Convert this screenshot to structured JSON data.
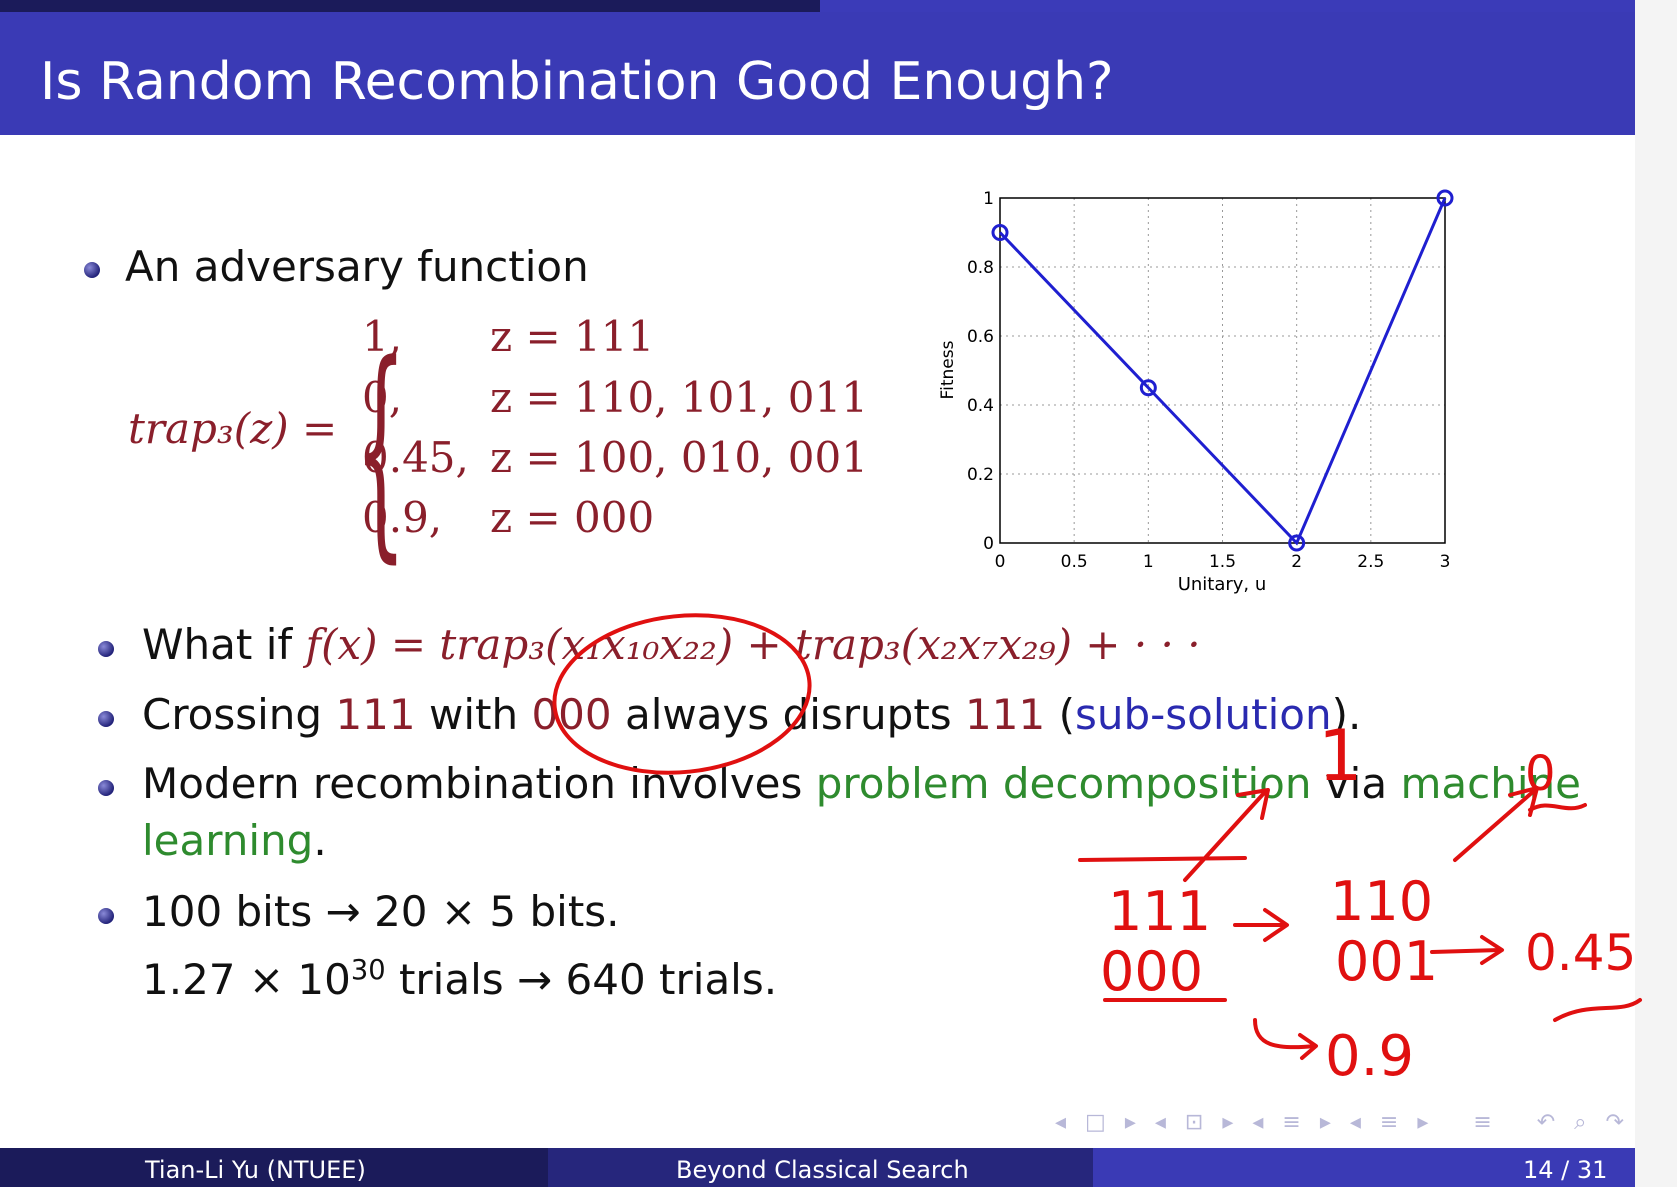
{
  "slide": {
    "title": "Is Random Recombination Good Enough?",
    "bullet1": "An adversary function",
    "trap_lhs": "trap₃(z) =",
    "cases": [
      {
        "value": "1,",
        "condition": "z = 111"
      },
      {
        "value": "0,",
        "condition": "z = 110, 101, 011"
      },
      {
        "value": "0.45,",
        "condition": "z = 100, 010, 001"
      },
      {
        "value": "0.9,",
        "condition": "z = 000"
      }
    ],
    "bullet2": {
      "prefix": "What if",
      "formula": "f(x) = trap₃(x₁x₁₀x₂₂) + trap₃(x₂x₇x₂₉) + · · ·"
    },
    "bullet3": {
      "a": "Crossing",
      "b": "111",
      "c": "with",
      "d": "000",
      "e": "always disrupts",
      "f": "111",
      "g": "(",
      "h": "sub-solution",
      "i": ")."
    },
    "bullet4": {
      "a": "Modern recombination involves",
      "b": "problem decomposition",
      "c": "via",
      "d": "machine",
      "e": "learning",
      "f": "."
    },
    "bullet5": {
      "line1": "100 bits → 20 × 5 bits.",
      "line2_a": "1.27 × 10",
      "line2_sup": "30",
      "line2_b": " trials → 640 trials."
    }
  },
  "chart_data": {
    "type": "line",
    "x": [
      0,
      1,
      2,
      3
    ],
    "y": [
      0.9,
      0.45,
      0,
      1
    ],
    "xlabel": "Unitary, u",
    "ylabel": "Fitness",
    "xlim": [
      0,
      3
    ],
    "ylim": [
      0,
      1
    ],
    "xticks": [
      "0",
      "0.5",
      "1",
      "1.5",
      "2",
      "2.5",
      "3"
    ],
    "yticks": [
      "0",
      "0.2",
      "0.4",
      "0.6",
      "0.8",
      "1"
    ],
    "grid": true,
    "color": "#1f1fd0"
  },
  "annotations": {
    "a1": "1",
    "a2": "0",
    "a3": "111",
    "a4": "000",
    "a5": "110",
    "a6": "001",
    "a7": "0.45",
    "a8": "0.9",
    "color": "#e01010"
  },
  "footer": {
    "author": "Tian-Li Yu  (NTUEE)",
    "talk": "Beyond Classical Search",
    "page": "14 / 31"
  }
}
